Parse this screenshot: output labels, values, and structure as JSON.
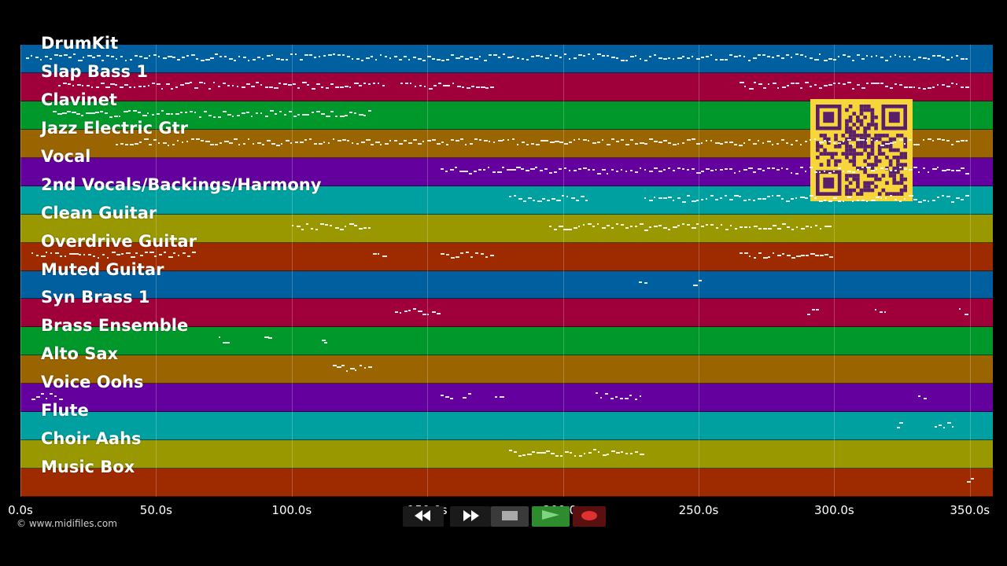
{
  "tracks": [
    {
      "label": "DrumKit",
      "color": "#005f9e"
    },
    {
      "label": "Slap Bass 1",
      "color": "#a0003a"
    },
    {
      "label": "Clavinet",
      "color": "#00982a"
    },
    {
      "label": "Jazz Electric Gtr",
      "color": "#9a6400"
    },
    {
      "label": "Vocal",
      "color": "#63009e"
    },
    {
      "label": "2nd Vocals/Backings/Harmony",
      "color": "#00a0a0"
    },
    {
      "label": "Clean Guitar",
      "color": "#999800"
    },
    {
      "label": "Overdrive Guitar",
      "color": "#9e2a00"
    },
    {
      "label": "Muted Guitar",
      "color": "#005f9e"
    },
    {
      "label": "Syn Brass 1",
      "color": "#a0003a"
    },
    {
      "label": "Brass Ensemble",
      "color": "#00982a"
    },
    {
      "label": "Alto Sax",
      "color": "#9a6400"
    },
    {
      "label": "Voice Oohs",
      "color": "#63009e"
    },
    {
      "label": "Flute",
      "color": "#00a0a0"
    },
    {
      "label": "Choir Aahs",
      "color": "#999800"
    },
    {
      "label": "Music Box",
      "color": "#9e2a00"
    }
  ],
  "timeline": {
    "ticks": [
      "0.0s",
      "50.0s",
      "100.0s",
      "150.0s",
      "200.0s",
      "250.0s",
      "300.0s",
      "350.0s"
    ],
    "tick_values": [
      0,
      50,
      100,
      150,
      200,
      250,
      300,
      350
    ],
    "max_seconds": 355
  },
  "copyright": "© www.midifiles.com",
  "transport": {
    "rewind_icon": "rewind-icon",
    "fast_forward_icon": "fast-forward-icon",
    "stop_icon": "stop-icon",
    "play_icon": "play-icon",
    "record_icon": "record-icon",
    "play_color": "#2e8b2e",
    "record_color": "#e03030"
  },
  "qr_code": {
    "color": "#f6d63a",
    "dark": "#5a1f6a"
  }
}
